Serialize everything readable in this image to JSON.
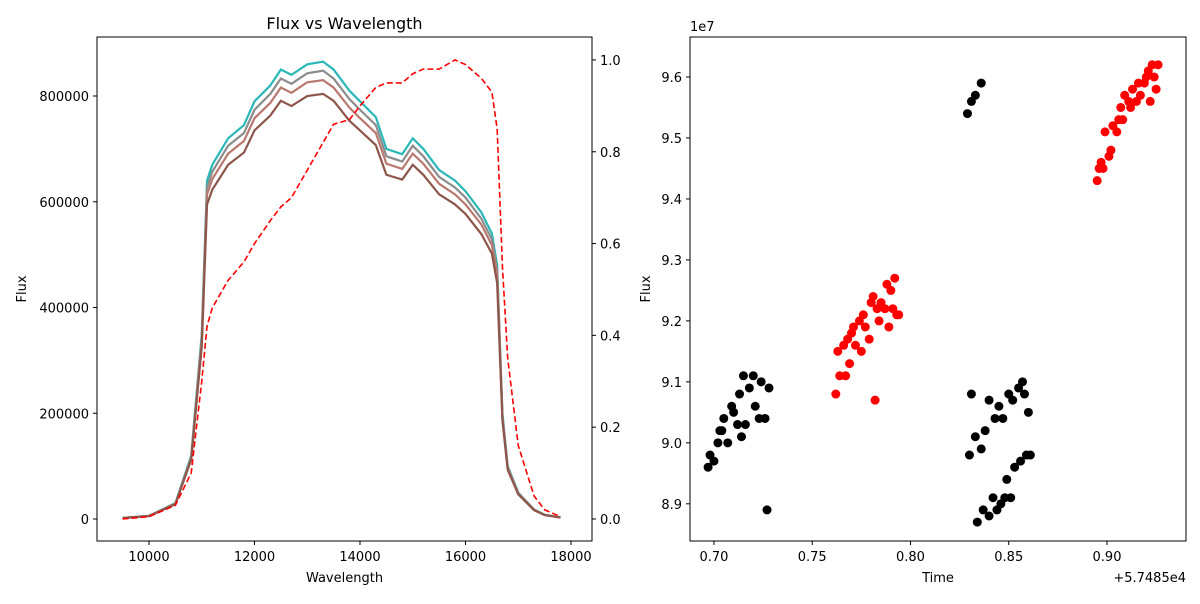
{
  "chart_data": [
    {
      "type": "line",
      "title": "Flux vs Wavelength",
      "xlabel": "Wavelength",
      "ylabel": "Flux",
      "x": [
        9500,
        10000,
        10500,
        10800,
        11000,
        11100,
        11200,
        11500,
        11800,
        12000,
        12300,
        12500,
        12700,
        13000,
        13300,
        13500,
        13800,
        14000,
        14300,
        14500,
        14800,
        15000,
        15200,
        15500,
        15800,
        16000,
        16300,
        16500,
        16600,
        16700,
        16800,
        17000,
        17300,
        17500,
        17800
      ],
      "series": [
        {
          "color": "#2ab7b7",
          "values": [
            2000,
            6000,
            30000,
            120000,
            350000,
            640000,
            670000,
            720000,
            745000,
            790000,
            820000,
            850000,
            840000,
            860000,
            865000,
            850000,
            810000,
            790000,
            760000,
            700000,
            690000,
            720000,
            700000,
            660000,
            640000,
            620000,
            580000,
            540000,
            480000,
            200000,
            100000,
            50000,
            18000,
            8000,
            3000
          ]
        },
        {
          "color": "#8c8c8c",
          "values": [
            2000,
            5900,
            29000,
            117000,
            343000,
            627000,
            657000,
            706000,
            730000,
            774000,
            804000,
            833000,
            823000,
            843000,
            848000,
            833000,
            794000,
            774000,
            745000,
            686000,
            676000,
            706000,
            686000,
            647000,
            627000,
            608000,
            568000,
            529000,
            470000,
            196000,
            98000,
            49000,
            17600,
            7800,
            2900
          ]
        },
        {
          "color": "#b9786e",
          "values": [
            1900,
            5800,
            28800,
            115000,
            336000,
            614000,
            643000,
            691000,
            715000,
            758000,
            787000,
            816000,
            806000,
            826000,
            830000,
            816000,
            778000,
            758000,
            730000,
            672000,
            662000,
            691000,
            672000,
            634000,
            614000,
            595000,
            557000,
            518000,
            461000,
            192000,
            96000,
            48000,
            17300,
            7700,
            2900
          ]
        },
        {
          "color": "#8c564b",
          "values": [
            1900,
            5600,
            27900,
            112000,
            326000,
            595000,
            623000,
            670000,
            693000,
            735000,
            763000,
            791000,
            781000,
            800000,
            804000,
            791000,
            753000,
            735000,
            707000,
            651000,
            642000,
            670000,
            651000,
            614000,
            595000,
            577000,
            539000,
            502000,
            446000,
            186000,
            93000,
            46500,
            16700,
            7400,
            2800
          ]
        },
        {
          "color": "#ff0000",
          "axis": "y2",
          "dash": "dashed",
          "values": [
            0,
            0.005,
            0.03,
            0.1,
            0.3,
            0.42,
            0.46,
            0.52,
            0.56,
            0.6,
            0.65,
            0.68,
            0.7,
            0.76,
            0.82,
            0.86,
            0.87,
            0.9,
            0.94,
            0.95,
            0.95,
            0.97,
            0.98,
            0.98,
            1.0,
            0.99,
            0.96,
            0.93,
            0.85,
            0.55,
            0.35,
            0.16,
            0.05,
            0.02,
            0.005
          ]
        }
      ],
      "xlim": [
        9014,
        18398
      ],
      "ylim": [
        -41600,
        911600
      ],
      "y2lim": [
        -0.048,
        1.05
      ],
      "xticks": [
        10000,
        12000,
        14000,
        16000,
        18000
      ],
      "yticks": [
        0,
        200000,
        400000,
        600000,
        800000
      ],
      "y2ticks": [
        {
          "value": 0,
          "label": "0.0"
        },
        0.2,
        0.4,
        0.6,
        0.8,
        {
          "value": 1,
          "label": "1.0"
        }
      ]
    },
    {
      "type": "scatter",
      "xlabel": "Time",
      "ylabel": "Flux",
      "y_offset_label": "1e7",
      "x_offset_label": "+5.7485e4",
      "series": [
        {
          "color": "#000000",
          "x": [
            0.697,
            0.698,
            0.7,
            0.702,
            0.704,
            0.705,
            0.707,
            0.709,
            0.71,
            0.712,
            0.713,
            0.715,
            0.716,
            0.718,
            0.72,
            0.721,
            0.723,
            0.724,
            0.726,
            0.728,
            0.727,
            0.714,
            0.703,
            0.829,
            0.831,
            0.833,
            0.836,
            0.83,
            0.831,
            0.833,
            0.834,
            0.836,
            0.837,
            0.838,
            0.84,
            0.84,
            0.842,
            0.843,
            0.844,
            0.845,
            0.846,
            0.847,
            0.848,
            0.849,
            0.85,
            0.851,
            0.852,
            0.853,
            0.855,
            0.856,
            0.857,
            0.858,
            0.859,
            0.86,
            0.861
          ],
          "values": [
            8.96,
            8.98,
            8.97,
            9.0,
            9.02,
            9.04,
            9.0,
            9.06,
            9.05,
            9.03,
            9.08,
            9.11,
            9.03,
            9.09,
            9.11,
            9.06,
            9.04,
            9.1,
            9.04,
            9.09,
            8.89,
            9.01,
            9.02,
            9.54,
            9.56,
            9.57,
            9.59,
            8.98,
            9.08,
            9.01,
            8.87,
            8.99,
            8.89,
            9.02,
            8.88,
            9.07,
            8.91,
            9.04,
            8.89,
            9.06,
            8.9,
            9.04,
            8.91,
            8.94,
            9.08,
            8.91,
            9.07,
            8.96,
            9.09,
            8.97,
            9.1,
            9.08,
            8.98,
            9.05,
            8.98
          ]
        },
        {
          "color": "#ff0000",
          "x": [
            0.762,
            0.763,
            0.764,
            0.766,
            0.767,
            0.768,
            0.769,
            0.77,
            0.771,
            0.772,
            0.774,
            0.775,
            0.776,
            0.777,
            0.779,
            0.78,
            0.781,
            0.782,
            0.783,
            0.784,
            0.785,
            0.787,
            0.788,
            0.789,
            0.79,
            0.791,
            0.792,
            0.793,
            0.794,
            0.895,
            0.896,
            0.897,
            0.898,
            0.899,
            0.901,
            0.902,
            0.903,
            0.905,
            0.906,
            0.907,
            0.908,
            0.909,
            0.911,
            0.912,
            0.913,
            0.915,
            0.916,
            0.917,
            0.919,
            0.92,
            0.921,
            0.922,
            0.923,
            0.924,
            0.925,
            0.926
          ],
          "values": [
            9.08,
            9.15,
            9.11,
            9.16,
            9.11,
            9.17,
            9.13,
            9.18,
            9.19,
            9.16,
            9.2,
            9.15,
            9.21,
            9.19,
            9.17,
            9.23,
            9.24,
            9.07,
            9.22,
            9.2,
            9.23,
            9.22,
            9.26,
            9.19,
            9.25,
            9.22,
            9.27,
            9.21,
            9.21,
            9.43,
            9.45,
            9.46,
            9.45,
            9.51,
            9.47,
            9.48,
            9.52,
            9.51,
            9.53,
            9.55,
            9.53,
            9.57,
            9.56,
            9.55,
            9.58,
            9.56,
            9.59,
            9.57,
            9.59,
            9.6,
            9.61,
            9.56,
            9.62,
            9.6,
            9.58,
            9.62
          ]
        }
      ],
      "xlim": [
        0.6878,
        0.9402
      ],
      "ylim": [
        8.839,
        9.6656
      ],
      "xticks": [
        {
          "value": 0.7,
          "label": "0.70"
        },
        0.75,
        {
          "value": 0.8,
          "label": "0.80"
        },
        0.85,
        {
          "value": 0.9,
          "label": "0.90"
        }
      ],
      "yticks": [
        8.9,
        {
          "value": 9,
          "label": "9.0"
        },
        9.1,
        9.2,
        9.3,
        9.4,
        9.5,
        9.6
      ]
    }
  ]
}
